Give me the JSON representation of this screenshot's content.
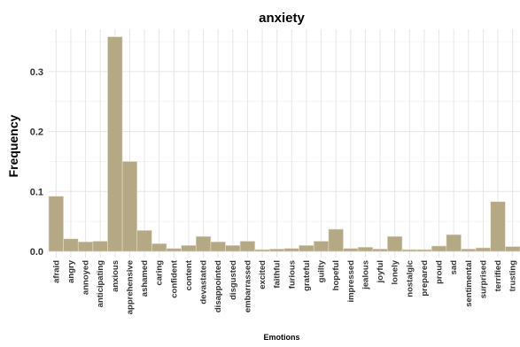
{
  "chart_data": {
    "type": "bar",
    "title": "anxiety",
    "xlabel": "Emotions",
    "ylabel": "Frequency",
    "ylim": [
      0,
      0.38
    ],
    "yticks": [
      0.0,
      0.1,
      0.2,
      0.3
    ],
    "ytick_labels": [
      "0.0",
      "0.1",
      "0.2",
      "0.3"
    ],
    "grid": true,
    "bar_color": "#b5a985",
    "bar_edge_color": "#e6e0cc",
    "categories": [
      "afraid",
      "angry",
      "annoyed",
      "anticipating",
      "anxious",
      "apprehensive",
      "ashamed",
      "caring",
      "confident",
      "content",
      "devastated",
      "disappointed",
      "disgusted",
      "embarrassed",
      "excited",
      "faithful",
      "furious",
      "grateful",
      "guilty",
      "hopeful",
      "impressed",
      "jealous",
      "joyful",
      "lonely",
      "nostalgic",
      "prepared",
      "proud",
      "sad",
      "sentimental",
      "surprised",
      "terrified",
      "trusting"
    ],
    "values": [
      0.092,
      0.021,
      0.016,
      0.017,
      0.358,
      0.15,
      0.035,
      0.013,
      0.005,
      0.01,
      0.025,
      0.016,
      0.01,
      0.017,
      0.003,
      0.004,
      0.005,
      0.01,
      0.017,
      0.037,
      0.005,
      0.007,
      0.004,
      0.025,
      0.003,
      0.003,
      0.009,
      0.028,
      0.004,
      0.006,
      0.083,
      0.008
    ]
  }
}
